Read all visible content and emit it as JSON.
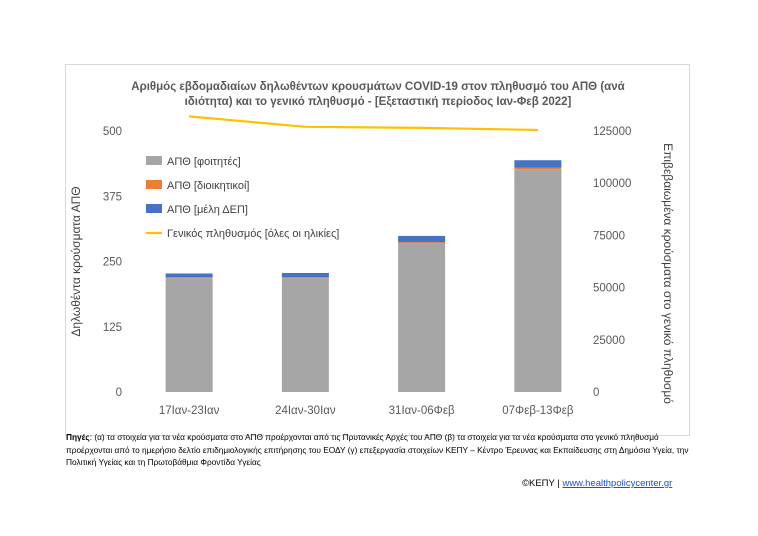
{
  "chart_data": {
    "type": "bar",
    "title": [
      "Αριθμός εβδομαδιαίων δηλωθέντων κρουσμάτων COVID-19 στον πληθυσμό του ΑΠΘ (ανά",
      "ιδιότητα) και το γενικό πληθυσμό - [Εξεταστική  περίοδος Ιαν-Φεβ 2022]"
    ],
    "ylabel": "Δηλωθέντα κρούσματα ΑΠΘ",
    "y2label": "Επιβεβαιωμένα κρούσματα στο γενικό πληθυσμό",
    "ylim": [
      0,
      500
    ],
    "y2lim": [
      0,
      125000
    ],
    "yticks": [
      "0",
      "125",
      "250",
      "375",
      "500"
    ],
    "y2ticks": [
      "0",
      "25000",
      "50000",
      "75000",
      "100000",
      "125000"
    ],
    "categories": [
      "17Ιαν-23Ιαν",
      "24Ιαν-30Ιαν",
      "31Ιαν-06Φεβ",
      "07Φεβ-13Φεβ"
    ],
    "series": [
      {
        "name": "ΑΠΘ [φοιτητές]",
        "kind": "bar",
        "color": "#a5a5a5",
        "values": [
          218,
          218,
          284,
          427
        ]
      },
      {
        "name": "ΑΠΘ [διοικητικοί]",
        "kind": "bar",
        "color": "#ed7d31",
        "values": [
          2,
          2,
          3,
          3
        ]
      },
      {
        "name": "ΑΠΘ [μέλη ΔΕΠ]",
        "kind": "bar",
        "color": "#4472c4",
        "values": [
          7,
          8,
          12,
          14
        ]
      },
      {
        "name": "Γενικός πληθυσμός [όλες οι ηλικίες]",
        "kind": "line",
        "axis": "right",
        "color": "#ffc000",
        "values": [
          132000,
          127000,
          126500,
          125500
        ]
      }
    ],
    "legend_position": "top-left",
    "grid": false
  },
  "caption": {
    "lead": "Πηγές",
    "text": ": (α) τα στοιχεία για τα νέα κρούσματα στο ΑΠΘ προέρχονται από τις Πρυτανικές Αρχές του ΑΠΘ (β) τα στοιχεία για τα νέα κρούσματα στο γενικό πληθυσμό προέρχονται από το ημερήσιο δελτίο επιδημιολογικής επιτήρησης του ΕΟΔΥ (γ) επεξεργασία στοιχείων ΚΕΠΥ – Κέντρο Έρευνας και Εκπαίδευσης στη Δημόσια Υγεία, την Πολιτική Υγείας και τη Πρωτοβάθμια Φροντίδα Υγείας"
  },
  "footer": {
    "copyright": "©ΚΕΠΥ | ",
    "link": "www.healthpolicycenter.gr"
  }
}
